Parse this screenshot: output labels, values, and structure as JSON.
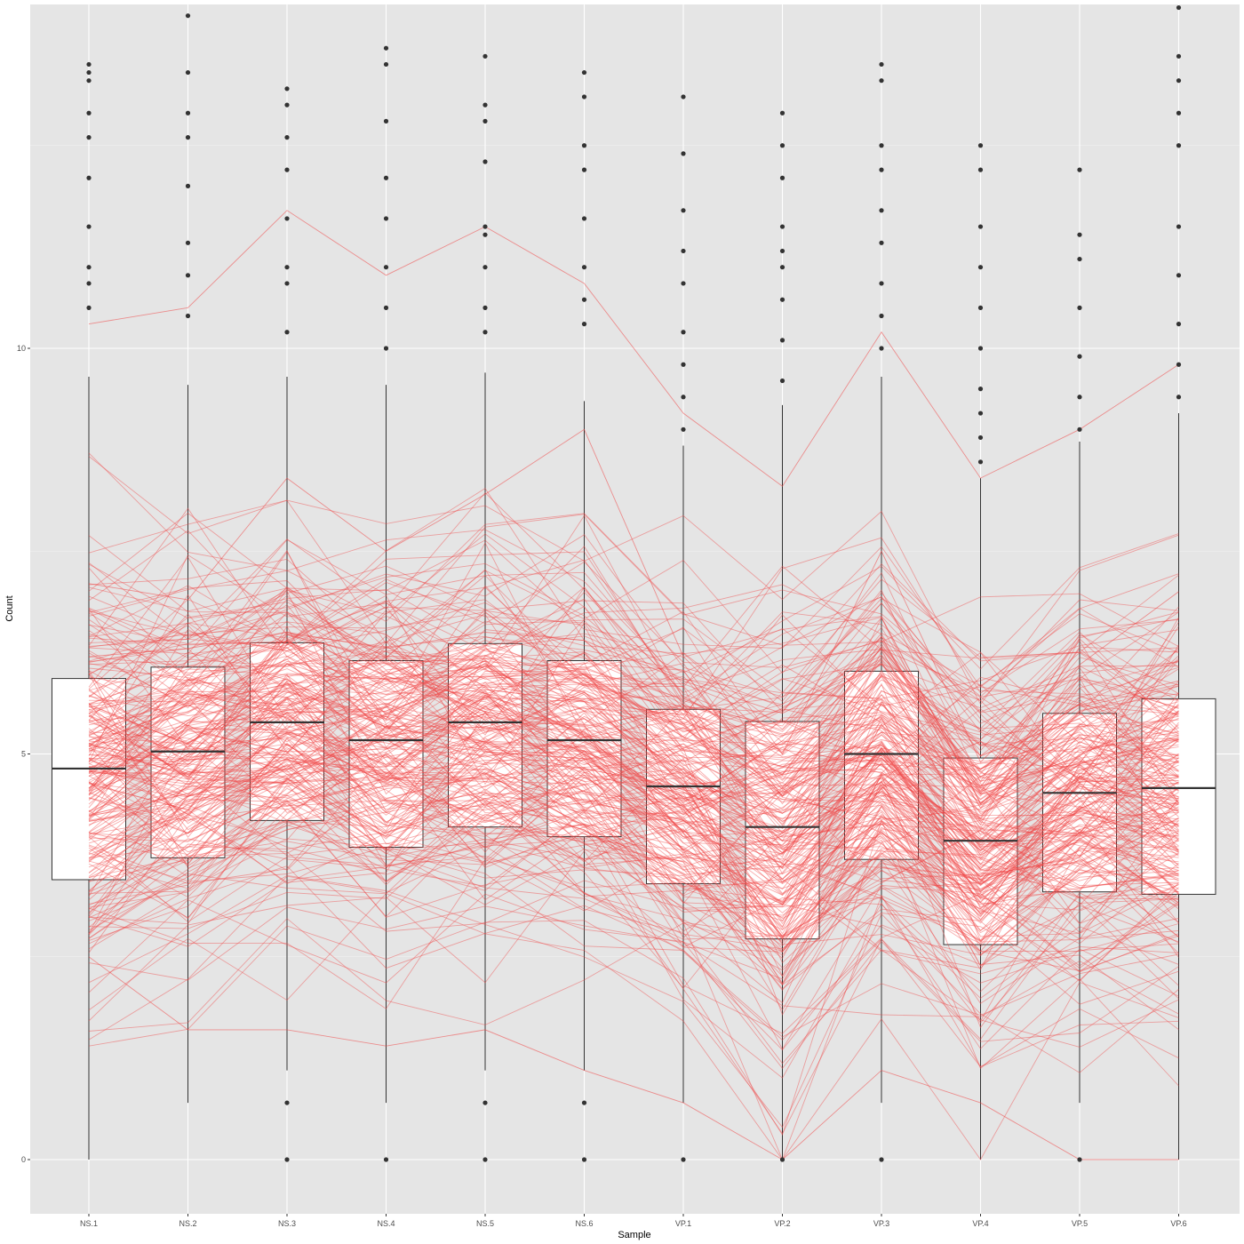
{
  "chart_data": {
    "type": "boxplot",
    "title": "",
    "xlabel": "Sample",
    "ylabel": "Count",
    "ylim": [
      -0.7,
      14.3
    ],
    "y_ticks": [
      0,
      5,
      10
    ],
    "grid": true,
    "categories": [
      "NS.1",
      "NS.2",
      "NS.3",
      "NS.4",
      "NS.5",
      "NS.6",
      "VP.1",
      "VP.2",
      "VP.3",
      "VP.4",
      "VP.5",
      "VP.6"
    ],
    "boxes": [
      {
        "q1": 3.45,
        "median": 4.82,
        "q3": 5.93,
        "whisker_low": 0.0,
        "whisker_high": 9.65
      },
      {
        "q1": 3.72,
        "median": 5.03,
        "q3": 6.07,
        "whisker_low": 0.7,
        "whisker_high": 9.55
      },
      {
        "q1": 4.18,
        "median": 5.39,
        "q3": 6.37,
        "whisker_low": 1.1,
        "whisker_high": 9.65
      },
      {
        "q1": 3.85,
        "median": 5.17,
        "q3": 6.15,
        "whisker_low": 0.7,
        "whisker_high": 9.55
      },
      {
        "q1": 4.1,
        "median": 5.39,
        "q3": 6.36,
        "whisker_low": 1.1,
        "whisker_high": 9.7
      },
      {
        "q1": 3.98,
        "median": 5.17,
        "q3": 6.15,
        "whisker_low": 1.1,
        "whisker_high": 9.35
      },
      {
        "q1": 3.4,
        "median": 4.6,
        "q3": 5.55,
        "whisker_low": 0.7,
        "whisker_high": 8.8
      },
      {
        "q1": 2.72,
        "median": 4.1,
        "q3": 5.4,
        "whisker_low": 0.0,
        "whisker_high": 9.3
      },
      {
        "q1": 3.7,
        "median": 5.0,
        "q3": 6.02,
        "whisker_low": 0.7,
        "whisker_high": 9.65
      },
      {
        "q1": 2.65,
        "median": 3.93,
        "q3": 4.95,
        "whisker_low": 0.0,
        "whisker_high": 8.4
      },
      {
        "q1": 3.3,
        "median": 4.52,
        "q3": 5.5,
        "whisker_low": 0.7,
        "whisker_high": 8.85
      },
      {
        "q1": 3.27,
        "median": 4.58,
        "q3": 5.68,
        "whisker_low": 0.0,
        "whisker_high": 9.2
      }
    ],
    "outliers": [
      [
        10.5,
        10.8,
        11.0,
        11.5,
        12.1,
        12.6,
        12.9,
        13.3,
        13.4,
        13.5
      ],
      [
        10.4,
        10.9,
        11.3,
        12.0,
        12.6,
        12.9,
        13.4,
        14.1
      ],
      [
        10.2,
        10.8,
        11.0,
        11.6,
        12.2,
        12.6,
        13.0,
        13.2,
        0.7,
        0.0
      ],
      [
        10.0,
        10.5,
        11.0,
        11.6,
        12.1,
        12.8,
        13.5,
        13.7,
        0.0
      ],
      [
        10.2,
        10.5,
        11.0,
        11.4,
        11.5,
        12.3,
        12.8,
        13.0,
        13.6,
        0.7,
        0.0
      ],
      [
        10.3,
        10.6,
        11.0,
        11.6,
        12.2,
        12.5,
        13.1,
        13.4,
        0.7,
        0.0
      ],
      [
        9.0,
        9.4,
        9.8,
        10.2,
        10.8,
        11.2,
        11.7,
        12.4,
        13.1,
        0.0
      ],
      [
        9.6,
        10.1,
        10.6,
        11.0,
        11.2,
        11.5,
        12.1,
        12.5,
        12.9,
        0.0
      ],
      [
        10.0,
        10.4,
        10.8,
        11.3,
        11.7,
        12.2,
        12.5,
        13.3,
        13.5,
        0.0
      ],
      [
        8.6,
        8.9,
        9.2,
        9.5,
        10.0,
        10.5,
        11.0,
        11.5,
        12.2,
        12.5
      ],
      [
        9.0,
        9.4,
        9.9,
        10.5,
        11.1,
        11.4,
        12.2,
        0.0
      ],
      [
        9.4,
        9.8,
        10.3,
        10.9,
        11.5,
        12.5,
        12.9,
        13.3,
        13.6,
        14.2
      ]
    ],
    "lines": {
      "color": "#f04646",
      "highlighted_series": [
        [
          10.3,
          10.5,
          11.7,
          10.9,
          11.5,
          10.8,
          9.2,
          8.3,
          10.2,
          8.4,
          9.0,
          9.8
        ],
        [
          7.1,
          6.9,
          8.4,
          7.5,
          8.2,
          9.0,
          6.2,
          5.0,
          7.5,
          4.9,
          6.1,
          7.0
        ],
        [
          6.2,
          6.3,
          6.5,
          6.3,
          6.5,
          6.4,
          5.9,
          5.5,
          6.1,
          5.1,
          5.6,
          5.9
        ],
        [
          2.5,
          1.6,
          1.6,
          1.4,
          1.6,
          1.1,
          0.7,
          0.0,
          1.1,
          0.7,
          0.0,
          0.0
        ]
      ]
    }
  }
}
